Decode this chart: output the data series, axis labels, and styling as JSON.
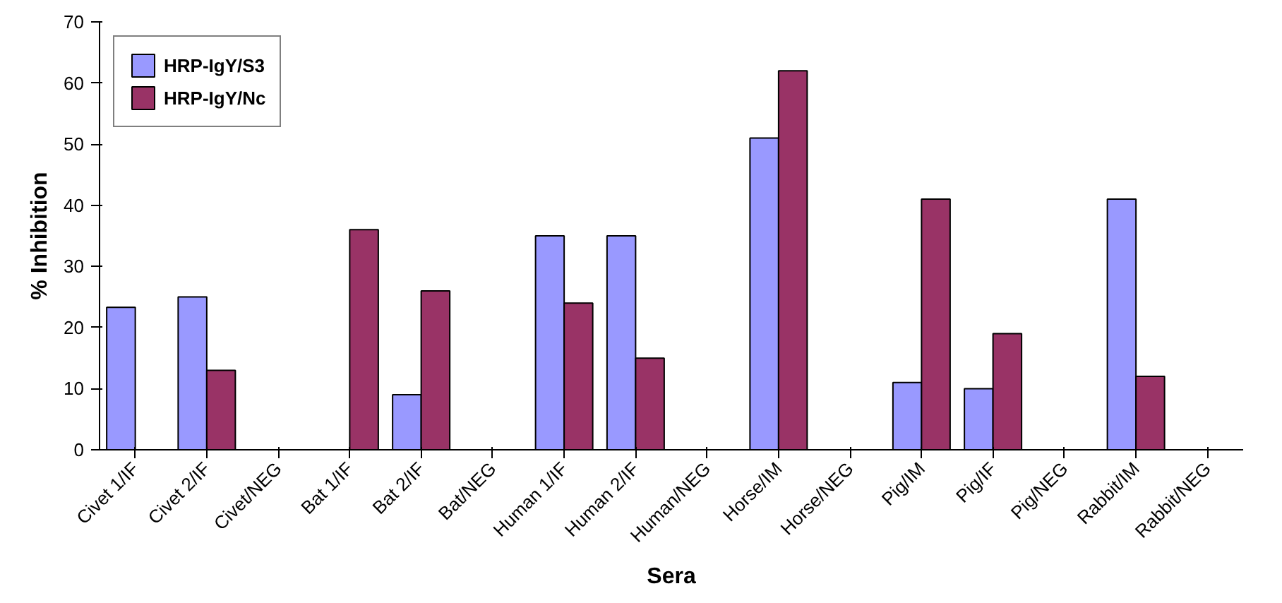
{
  "chart_data": {
    "type": "bar",
    "xlabel": "Sera",
    "ylabel": "% Inhibition",
    "categories": [
      "Civet 1/IF",
      "Civet 2/IF",
      "Civet/NEG",
      "Bat 1/IF",
      "Bat 2/IF",
      "Bat/NEG",
      "Human 1/IF",
      "Human 2/IF",
      "Human/NEG",
      "Horse/IM",
      "Horse/NEG",
      "Pig/IM",
      "Pig/IF",
      "Pig/NEG",
      "Rabbit/IM",
      "Rabbit/NEG"
    ],
    "series": [
      {
        "name": "HRP-IgY/S3",
        "color": "#9999ff",
        "values": [
          23.3,
          25,
          null,
          null,
          9,
          null,
          35,
          35,
          null,
          51,
          null,
          11,
          10,
          null,
          41,
          null
        ]
      },
      {
        "name": "HRP-IgY/Nc",
        "color": "#993366",
        "values": [
          null,
          13,
          null,
          36,
          26,
          null,
          24,
          15,
          null,
          62,
          null,
          41,
          19,
          null,
          12,
          null
        ]
      }
    ],
    "ylim": [
      0,
      70
    ],
    "yticks": [
      0,
      10,
      20,
      30,
      40,
      50,
      60,
      70
    ],
    "grid": false,
    "legend": "top left"
  }
}
